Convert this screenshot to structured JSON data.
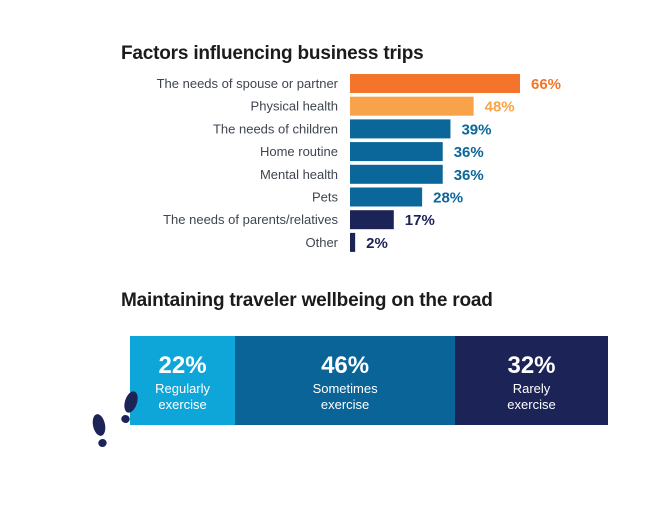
{
  "titles": {
    "factors": "Factors influencing business trips",
    "wellbeing": "Maintaining traveler wellbeing on the road"
  },
  "chart_data": [
    {
      "type": "bar",
      "orientation": "horizontal",
      "title": "Factors influencing business trips",
      "categories": [
        "The needs of spouse or partner",
        "Physical health",
        "The needs of children",
        "Home routine",
        "Mental health",
        "Pets",
        "The needs of parents/relatives",
        "Other"
      ],
      "values": [
        66,
        48,
        39,
        36,
        36,
        28,
        17,
        2
      ],
      "value_labels": [
        "66%",
        "48%",
        "39%",
        "36%",
        "36%",
        "28%",
        "17%",
        "2%"
      ],
      "colors": [
        "#f4742b",
        "#f8a24a",
        "#0b6699",
        "#0b6699",
        "#0b6699",
        "#0b6699",
        "#1b2357",
        "#1b2357"
      ],
      "xlim": [
        0,
        66
      ]
    },
    {
      "type": "bar",
      "orientation": "stacked-horizontal",
      "title": "Maintaining traveler wellbeing on the road",
      "segments": [
        {
          "pct": "22%",
          "label_line1": "Regularly",
          "label_line2": "exercise",
          "value": 22,
          "color": "#0ea6d9"
        },
        {
          "pct": "46%",
          "label_line1": "Sometimes",
          "label_line2": "exercise",
          "value": 46,
          "color": "#0a6497"
        },
        {
          "pct": "32%",
          "label_line1": "Rarely",
          "label_line2": "exercise",
          "value": 32,
          "color": "#1b2357"
        }
      ]
    }
  ],
  "icons": {
    "decoration": "footprints-icon"
  }
}
